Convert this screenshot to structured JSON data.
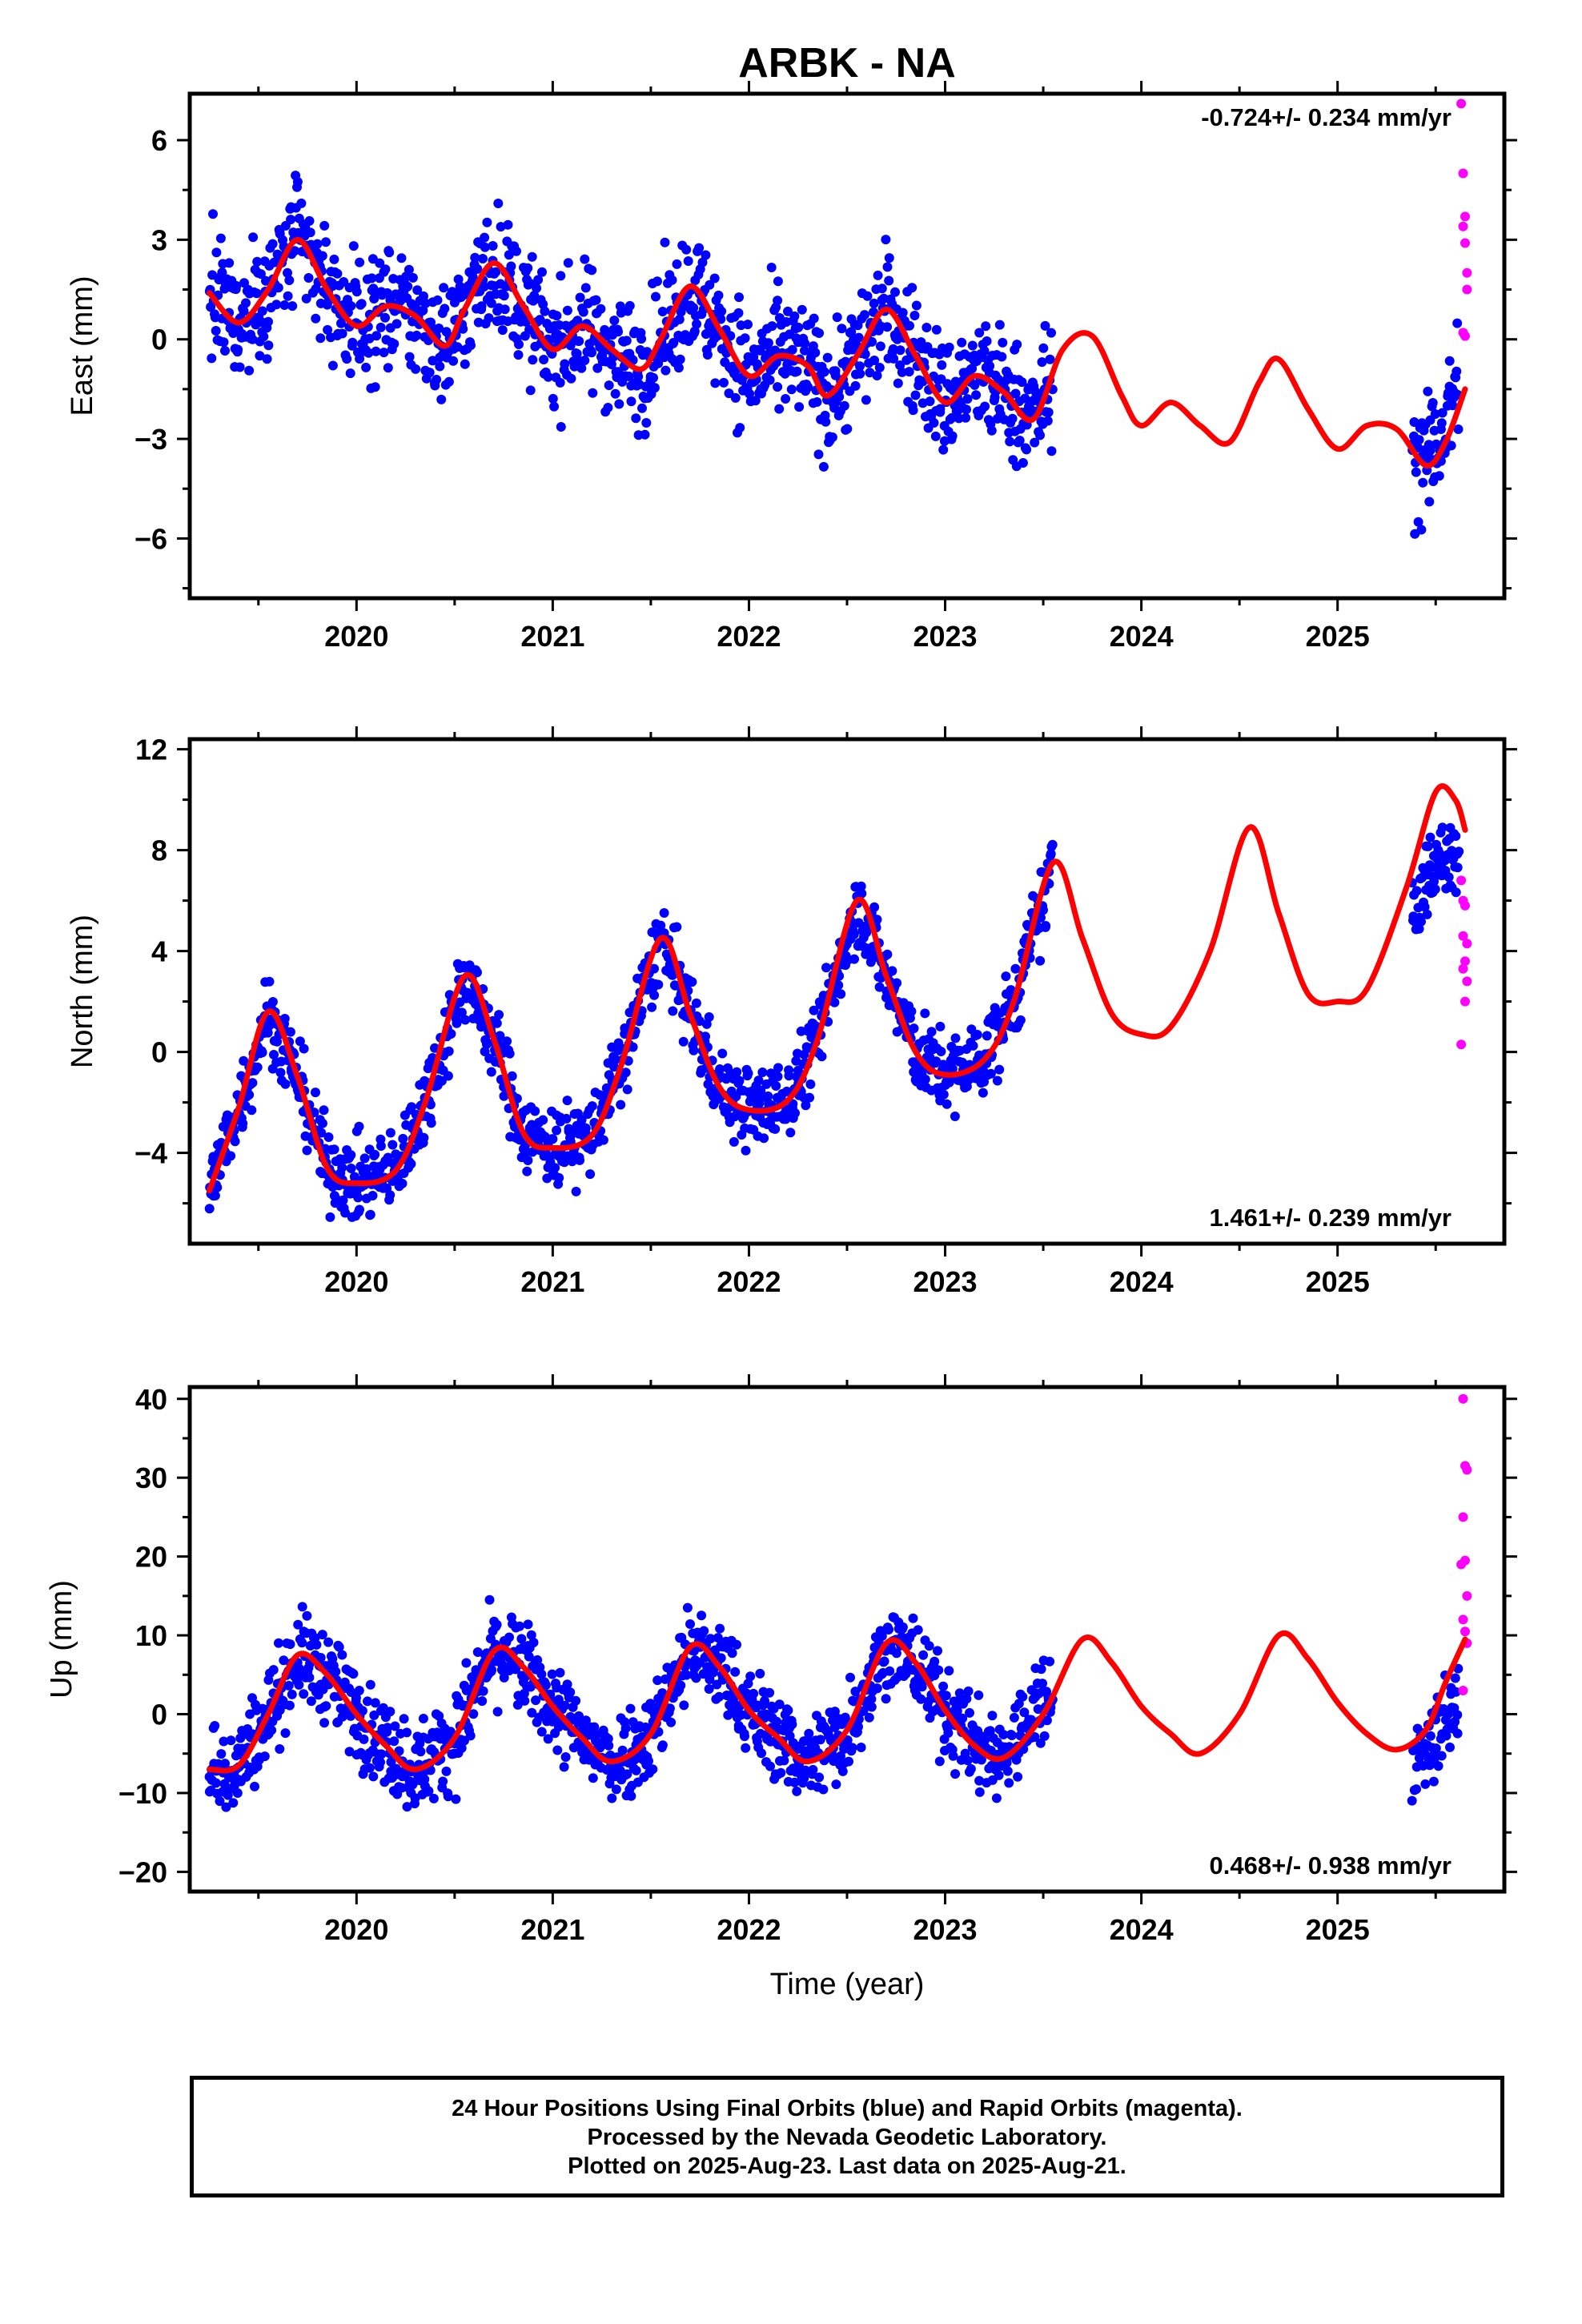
{
  "title": "ARBK - NA",
  "colors": {
    "final_orbits": "#0000ff",
    "rapid_orbits": "#ff00ff",
    "model": "#ff0000",
    "frame": "#000000"
  },
  "footer": {
    "line1": "24 Hour Positions Using Final Orbits (blue) and Rapid Orbits (magenta).",
    "line2": "Processed by the Nevada Geodetic Laboratory.",
    "line3": "Plotted on 2025-Aug-23. Last data on 2025-Aug-21."
  },
  "chart_data": [
    {
      "type": "scatter",
      "component": "east",
      "ylabel": "East (mm)",
      "xlabel": "",
      "rate_label": "-0.724+/- 0.234 mm/yr",
      "xlim": [
        2019.15,
        2025.85
      ],
      "ylim": [
        -7.8,
        7.4
      ],
      "xticks": [
        2020,
        2021,
        2022,
        2023,
        2024,
        2025
      ],
      "yticks": [
        -6,
        -3,
        0,
        3,
        6
      ],
      "ytick_labels": [
        "−6",
        "−3",
        "0",
        "3",
        "6"
      ],
      "final_range": [
        [
          2019.25,
          2023.55
        ],
        [
          2025.38,
          2025.62
        ]
      ],
      "model": {
        "x": [
          2019.25,
          2019.4,
          2019.55,
          2019.7,
          2019.85,
          2020.0,
          2020.15,
          2020.3,
          2020.45,
          2020.55,
          2020.7,
          2020.85,
          2021.0,
          2021.15,
          2021.3,
          2021.45,
          2021.55,
          2021.7,
          2021.85,
          2022.0,
          2022.15,
          2022.3,
          2022.4,
          2022.55,
          2022.7,
          2022.85,
          2023.0,
          2023.15,
          2023.3,
          2023.45,
          2023.6,
          2023.75,
          2023.9,
          2024.0,
          2024.15,
          2024.3,
          2024.45,
          2024.6,
          2024.7,
          2024.85,
          2025.0,
          2025.15,
          2025.3,
          2025.45,
          2025.55,
          2025.65
        ],
        "y": [
          1.4,
          0.5,
          1.5,
          3.0,
          1.5,
          0.4,
          1.0,
          0.7,
          -0.2,
          0.9,
          2.3,
          1.0,
          -0.3,
          0.4,
          -0.3,
          -0.9,
          0.0,
          1.6,
          0.3,
          -1.1,
          -0.5,
          -0.8,
          -1.7,
          -0.5,
          0.9,
          -0.5,
          -1.9,
          -1.1,
          -1.6,
          -2.4,
          -0.3,
          0.1,
          -1.7,
          -2.6,
          -1.9,
          -2.6,
          -3.1,
          -1.3,
          -0.6,
          -2.1,
          -3.3,
          -2.6,
          -2.7,
          -3.8,
          -3.1,
          -1.5
        ]
      },
      "final_series": {
        "x": [
          2019.25,
          2019.4,
          2019.55,
          2019.7,
          2019.85,
          2020.0,
          2020.15,
          2020.3,
          2020.45,
          2020.55,
          2020.7,
          2020.85,
          2021.0,
          2021.15,
          2021.3,
          2021.45,
          2021.55,
          2021.7,
          2021.85,
          2022.0,
          2022.15,
          2022.3,
          2022.4,
          2022.55,
          2022.7,
          2022.85,
          2023.0,
          2023.15,
          2023.3,
          2023.45,
          2023.55,
          2025.38,
          2025.45,
          2025.55,
          2025.62
        ],
        "y": [
          1.4,
          0.5,
          1.5,
          3.0,
          1.5,
          0.4,
          1.0,
          0.7,
          -0.2,
          0.9,
          2.3,
          1.0,
          -0.3,
          0.4,
          -0.3,
          -0.9,
          0.0,
          1.6,
          0.3,
          -1.1,
          -0.5,
          -0.8,
          -1.7,
          -0.5,
          0.9,
          -0.5,
          -1.9,
          -1.1,
          -1.6,
          -2.4,
          -1.2,
          -3.5,
          -3.8,
          -2.6,
          -1.0
        ],
        "scatter": 1.3
      },
      "rapid_points": {
        "x": [
          2025.63,
          2025.64,
          2025.65,
          2025.64,
          2025.65,
          2025.66,
          2025.66,
          2025.64,
          2025.65
        ],
        "y": [
          7.1,
          5.0,
          3.7,
          3.4,
          2.9,
          2.0,
          1.5,
          0.2,
          0.1
        ]
      }
    },
    {
      "type": "scatter",
      "component": "north",
      "ylabel": "North (mm)",
      "xlabel": "",
      "rate_label": "1.461+/- 0.239 mm/yr",
      "xlim": [
        2019.15,
        2025.85
      ],
      "ylim": [
        -7.6,
        12.4
      ],
      "xticks": [
        2020,
        2021,
        2022,
        2023,
        2024,
        2025
      ],
      "yticks": [
        -4,
        0,
        4,
        8,
        12
      ],
      "ytick_labels": [
        "−4",
        "0",
        "4",
        "8",
        "12"
      ],
      "final_range": [
        [
          2019.25,
          2023.55
        ],
        [
          2025.38,
          2025.62
        ]
      ],
      "model": {
        "x": [
          2019.25,
          2019.4,
          2019.55,
          2019.7,
          2019.85,
          2020.0,
          2020.2,
          2020.35,
          2020.55,
          2020.7,
          2020.85,
          2021.0,
          2021.2,
          2021.35,
          2021.55,
          2021.7,
          2021.85,
          2022.0,
          2022.2,
          2022.35,
          2022.55,
          2022.7,
          2022.85,
          2023.0,
          2023.2,
          2023.35,
          2023.55,
          2023.7,
          2023.85,
          2024.0,
          2024.15,
          2024.35,
          2024.55,
          2024.7,
          2024.85,
          2025.0,
          2025.15,
          2025.35,
          2025.5,
          2025.6,
          2025.65
        ],
        "y": [
          -5.5,
          -2.2,
          1.6,
          -1.0,
          -4.6,
          -5.2,
          -4.7,
          -2.0,
          3.0,
          0.5,
          -3.2,
          -3.8,
          -3.3,
          -0.5,
          4.5,
          1.5,
          -1.4,
          -2.3,
          -1.9,
          0.5,
          6.0,
          3.0,
          0.0,
          -0.9,
          -0.3,
          2.0,
          7.5,
          4.5,
          1.5,
          0.7,
          1.0,
          4.0,
          8.9,
          5.5,
          2.3,
          2.0,
          2.5,
          6.5,
          10.3,
          10.0,
          8.8
        ]
      },
      "final_series": {
        "x": [
          2019.25,
          2019.4,
          2019.55,
          2019.7,
          2019.85,
          2020.0,
          2020.2,
          2020.35,
          2020.55,
          2020.7,
          2020.85,
          2021.0,
          2021.2,
          2021.35,
          2021.55,
          2021.7,
          2021.85,
          2022.0,
          2022.2,
          2022.35,
          2022.55,
          2022.7,
          2022.85,
          2023.0,
          2023.2,
          2023.35,
          2023.55,
          2025.38,
          2025.45,
          2025.55,
          2025.62
        ],
        "y": [
          -5.5,
          -2.2,
          1.6,
          -1.0,
          -4.6,
          -5.2,
          -4.7,
          -2.0,
          3.0,
          0.5,
          -3.2,
          -3.8,
          -3.3,
          -0.5,
          4.5,
          1.5,
          -1.4,
          -2.3,
          -1.9,
          0.5,
          6.0,
          3.0,
          0.0,
          -0.9,
          -0.3,
          2.0,
          7.3,
          5.5,
          6.8,
          7.8,
          7.5
        ],
        "scatter": 1.1
      },
      "rapid_points": {
        "x": [
          2025.63,
          2025.64,
          2025.65,
          2025.64,
          2025.66,
          2025.65,
          2025.64,
          2025.66,
          2025.65,
          2025.63
        ],
        "y": [
          6.8,
          6.0,
          5.8,
          4.6,
          4.3,
          3.6,
          3.3,
          2.8,
          2.0,
          0.3
        ]
      }
    },
    {
      "type": "scatter",
      "component": "up",
      "ylabel": "Up (mm)",
      "xlabel": "Time (year)",
      "rate_label": "0.468+/- 0.938 mm/yr",
      "xlim": [
        2019.15,
        2025.85
      ],
      "ylim": [
        -22.5,
        41.5
      ],
      "xticks": [
        2020,
        2021,
        2022,
        2023,
        2024,
        2025
      ],
      "yticks": [
        -20,
        -10,
        0,
        10,
        20,
        30,
        40
      ],
      "ytick_labels": [
        "−20",
        "−10",
        "0",
        "10",
        "20",
        "30",
        "40"
      ],
      "final_range": [
        [
          2019.25,
          2023.55
        ],
        [
          2025.38,
          2025.62
        ]
      ],
      "model": {
        "x": [
          2019.25,
          2019.4,
          2019.55,
          2019.7,
          2019.85,
          2020.0,
          2020.15,
          2020.3,
          2020.5,
          2020.7,
          2020.85,
          2021.0,
          2021.15,
          2021.3,
          2021.5,
          2021.7,
          2021.85,
          2022.0,
          2022.15,
          2022.3,
          2022.5,
          2022.7,
          2022.85,
          2023.0,
          2023.15,
          2023.3,
          2023.5,
          2023.7,
          2023.85,
          2024.0,
          2024.15,
          2024.3,
          2024.5,
          2024.7,
          2024.85,
          2025.0,
          2025.15,
          2025.3,
          2025.45,
          2025.55,
          2025.65
        ],
        "y": [
          -7.0,
          -6.5,
          0.0,
          7.5,
          5.0,
          0.0,
          -4.0,
          -7.0,
          -3.0,
          8.0,
          6.0,
          1.0,
          -3.0,
          -6.0,
          -2.5,
          8.5,
          6.0,
          0.5,
          -3.0,
          -6.0,
          -2.0,
          9.0,
          6.5,
          0.5,
          -4.0,
          -5.5,
          0.0,
          9.5,
          6.5,
          1.0,
          -2.5,
          -5.0,
          0.0,
          10.0,
          7.0,
          1.5,
          -2.5,
          -4.5,
          -2.0,
          4.0,
          9.5
        ]
      },
      "final_series": {
        "x": [
          2019.25,
          2019.4,
          2019.55,
          2019.7,
          2019.85,
          2020.0,
          2020.15,
          2020.3,
          2020.5,
          2020.7,
          2020.85,
          2021.0,
          2021.15,
          2021.3,
          2021.5,
          2021.7,
          2021.85,
          2022.0,
          2022.15,
          2022.3,
          2022.5,
          2022.7,
          2022.85,
          2023.0,
          2023.15,
          2023.3,
          2023.55,
          2025.38,
          2025.45,
          2025.55,
          2025.62
        ],
        "y": [
          -7.0,
          -6.5,
          0.0,
          7.5,
          5.0,
          0.0,
          -4.0,
          -7.0,
          -3.0,
          8.0,
          6.0,
          1.0,
          -3.0,
          -6.0,
          -2.5,
          8.5,
          6.0,
          0.5,
          -3.0,
          -6.0,
          -2.0,
          9.0,
          6.5,
          0.5,
          -4.0,
          -5.5,
          4.0,
          -6.0,
          -4.5,
          -1.0,
          2.0
        ],
        "scatter": 4.0
      },
      "rapid_points": {
        "x": [
          2025.64,
          2025.65,
          2025.66,
          2025.64,
          2025.65,
          2025.63,
          2025.66,
          2025.64,
          2025.65,
          2025.66,
          2025.64
        ],
        "y": [
          40.0,
          31.5,
          31.0,
          25.0,
          19.5,
          19.0,
          15.0,
          12.0,
          10.5,
          9.0,
          3.0
        ]
      }
    }
  ]
}
